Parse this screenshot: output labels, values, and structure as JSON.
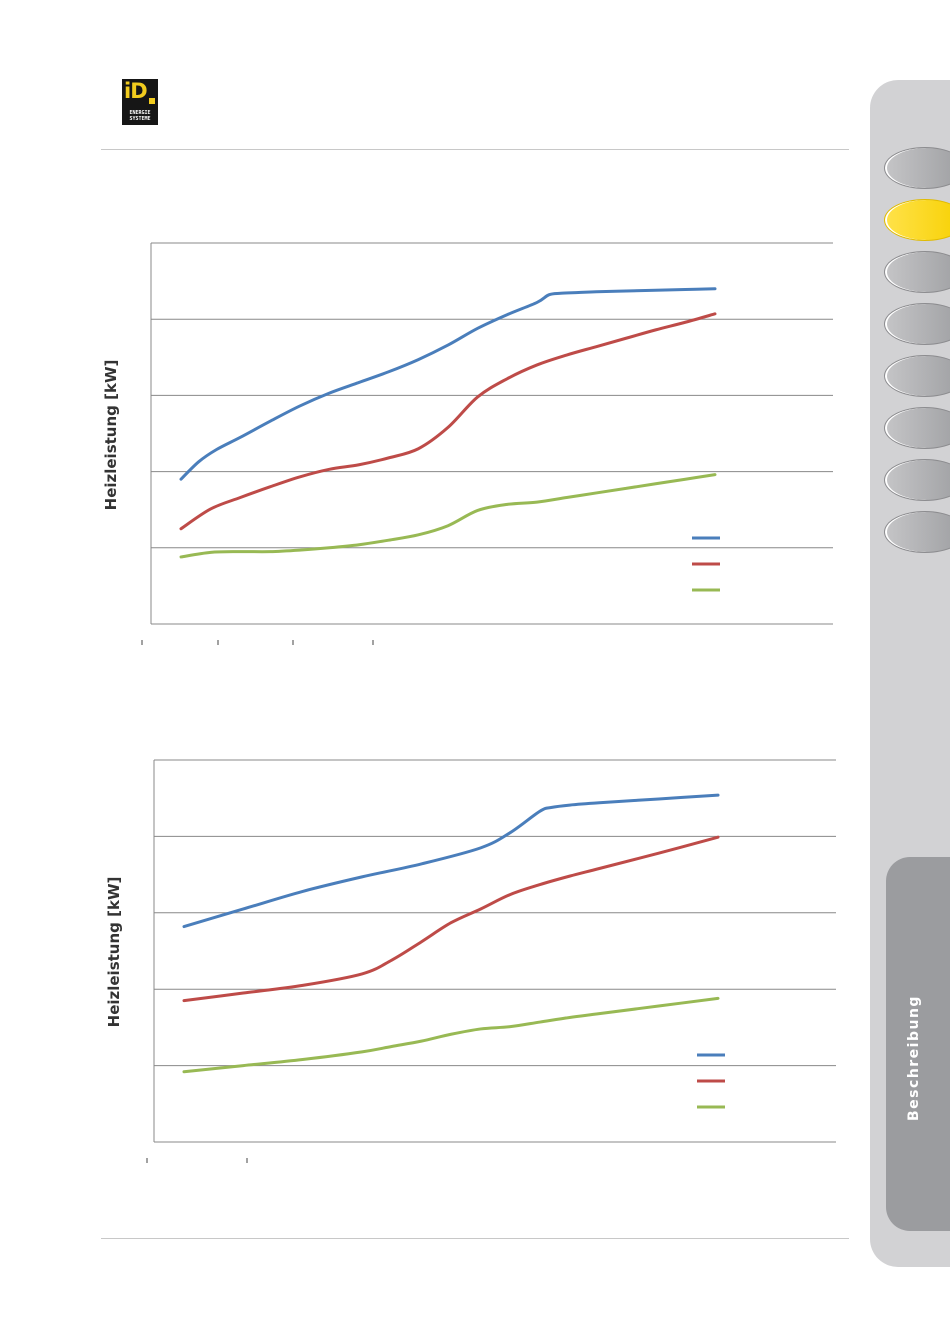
{
  "header": {
    "logo_text": "iD",
    "logo_sub_1": "ENERGIE",
    "logo_sub_2": "SYSTEME"
  },
  "sidebar": {
    "tabs": [
      {
        "name": "tab-1",
        "state": "inactive"
      },
      {
        "name": "tab-2",
        "state": "active"
      },
      {
        "name": "tab-3",
        "state": "inactive"
      },
      {
        "name": "tab-4",
        "state": "inactive"
      },
      {
        "name": "tab-5",
        "state": "inactive"
      },
      {
        "name": "tab-6",
        "state": "inactive"
      },
      {
        "name": "tab-7",
        "state": "inactive"
      },
      {
        "name": "tab-8",
        "state": "inactive"
      }
    ],
    "section_label": "Beschreibung",
    "colors": {
      "active": "#f7d000",
      "inactive": "#a7a8ab",
      "panel": "#9b9c9f",
      "background": "#d2d2d4"
    }
  },
  "chart_data": [
    {
      "type": "line",
      "title": "",
      "ylabel": "Heizleistung [kW]",
      "xlabel": "",
      "ylim": [
        0,
        5
      ],
      "xlim": [
        0,
        100
      ],
      "grid": true,
      "legend_position": "bottom-right",
      "legend": [
        "",
        "",
        ""
      ],
      "series": [
        {
          "color": "#4a7ebb",
          "x": [
            0,
            3,
            6,
            10,
            15,
            20,
            25,
            30,
            35,
            40,
            45,
            50,
            55,
            60,
            62,
            64,
            67,
            70,
            75,
            80,
            85,
            90
          ],
          "y": [
            1.9,
            2.13,
            2.29,
            2.45,
            2.66,
            2.86,
            3.03,
            3.17,
            3.31,
            3.47,
            3.66,
            3.88,
            4.06,
            4.22,
            4.32,
            4.34,
            4.35,
            4.36,
            4.37,
            4.38,
            4.39,
            4.4
          ]
        },
        {
          "color": "#be4b48",
          "x": [
            0,
            5,
            10,
            15,
            20,
            25,
            30,
            35,
            40,
            45,
            50,
            55,
            60,
            65,
            70,
            75,
            80,
            85,
            90
          ],
          "y": [
            1.25,
            1.51,
            1.66,
            1.8,
            1.93,
            2.03,
            2.09,
            2.18,
            2.3,
            2.58,
            2.98,
            3.22,
            3.4,
            3.53,
            3.64,
            3.75,
            3.86,
            3.96,
            4.07
          ]
        },
        {
          "color": "#98b954",
          "x": [
            0,
            5,
            10,
            15,
            20,
            25,
            30,
            35,
            40,
            45,
            50,
            55,
            60,
            65,
            70,
            75,
            80,
            85,
            90
          ],
          "y": [
            0.88,
            0.94,
            0.95,
            0.95,
            0.97,
            1.0,
            1.04,
            1.1,
            1.17,
            1.29,
            1.49,
            1.57,
            1.6,
            1.66,
            1.72,
            1.78,
            1.84,
            1.9,
            1.96
          ]
        }
      ]
    },
    {
      "type": "line",
      "title": "",
      "ylabel": "Heizleistung [kW]",
      "xlabel": "",
      "ylim": [
        0,
        5
      ],
      "xlim": [
        0,
        100
      ],
      "grid": true,
      "legend_position": "bottom-right",
      "legend": [
        "",
        "",
        ""
      ],
      "series": [
        {
          "color": "#4a7ebb",
          "x": [
            0,
            10,
            20,
            30,
            40,
            50,
            55,
            60,
            62,
            65,
            70,
            80,
            90
          ],
          "y": [
            2.82,
            3.05,
            3.28,
            3.47,
            3.64,
            3.85,
            4.05,
            4.33,
            4.38,
            4.41,
            4.44,
            4.49,
            4.54
          ]
        },
        {
          "color": "#be4b48",
          "x": [
            0,
            10,
            20,
            30,
            35,
            40,
            45,
            50,
            55,
            60,
            65,
            70,
            80,
            90
          ],
          "y": [
            1.85,
            1.95,
            2.05,
            2.2,
            2.38,
            2.62,
            2.87,
            3.05,
            3.24,
            3.37,
            3.48,
            3.58,
            3.78,
            3.99
          ]
        },
        {
          "color": "#98b954",
          "x": [
            0,
            10,
            20,
            30,
            35,
            40,
            45,
            50,
            55,
            60,
            65,
            70,
            80,
            90
          ],
          "y": [
            0.92,
            1.0,
            1.08,
            1.18,
            1.25,
            1.32,
            1.41,
            1.48,
            1.51,
            1.57,
            1.63,
            1.68,
            1.78,
            1.88
          ]
        }
      ]
    }
  ]
}
